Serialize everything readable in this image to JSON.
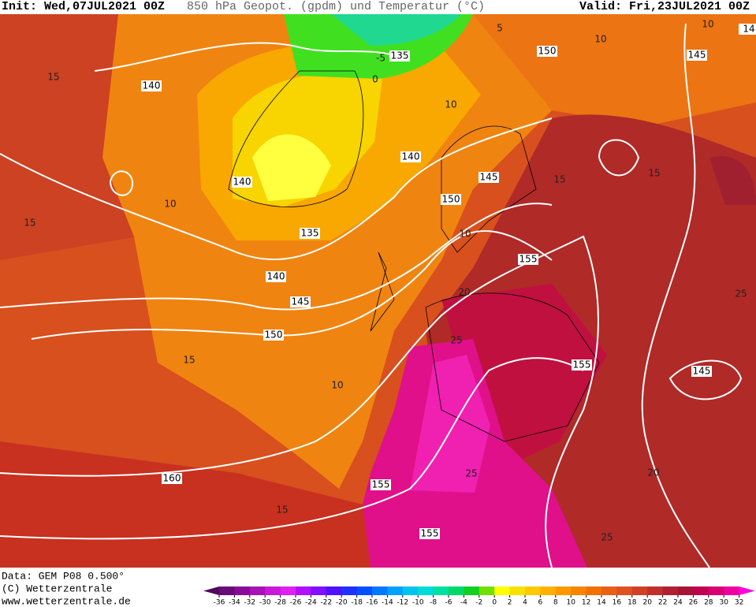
{
  "header": {
    "init": "Init: Wed,07JUL2021 00Z",
    "title": "850 hPa Geopot. (gpdm) und Temperatur (°C)",
    "valid": "Valid: Fri,23JUL2021 00Z"
  },
  "footer": {
    "data": "Data: GEM P08 0.500°",
    "copyright": "(C) Wetterzentrale",
    "url": "www.wetterzentrale.de"
  },
  "colorbar": {
    "ticks": [
      -36,
      -34,
      -32,
      -30,
      -28,
      -26,
      -24,
      -22,
      -20,
      -18,
      -16,
      -14,
      -12,
      -10,
      -8,
      -6,
      -4,
      -2,
      0,
      2,
      4,
      6,
      8,
      10,
      12,
      14,
      16,
      18,
      20,
      22,
      24,
      26,
      28,
      30,
      32
    ],
    "colors": [
      "#50085a",
      "#6a0a78",
      "#8a0a98",
      "#a810b8",
      "#c818d8",
      "#e020f0",
      "#b010ff",
      "#8010ff",
      "#5010ff",
      "#2030ff",
      "#0050ff",
      "#0078ff",
      "#00a0ff",
      "#00c4f0",
      "#00dcd8",
      "#00e0a0",
      "#00d868",
      "#10d020",
      "#70e000",
      "#ffff00",
      "#f8e000",
      "#ffc800",
      "#ffb000",
      "#ff9800",
      "#f88400",
      "#f07000",
      "#e86018",
      "#e05020",
      "#d04024",
      "#c0302a",
      "#b02030",
      "#a81438",
      "#c00050",
      "#d80070",
      "#f000a0",
      "#ff00e0"
    ]
  },
  "map": {
    "height_labels": [
      135,
      150,
      145,
      14,
      140,
      140,
      145,
      140,
      150,
      135,
      155,
      140,
      145,
      150,
      155,
      145,
      160,
      155,
      155
    ],
    "temperature_labels": [
      15,
      10,
      10,
      5,
      -5,
      0,
      10,
      15,
      15,
      10,
      15,
      10,
      15,
      10,
      20,
      25,
      25,
      20,
      25,
      15,
      25
    ]
  }
}
